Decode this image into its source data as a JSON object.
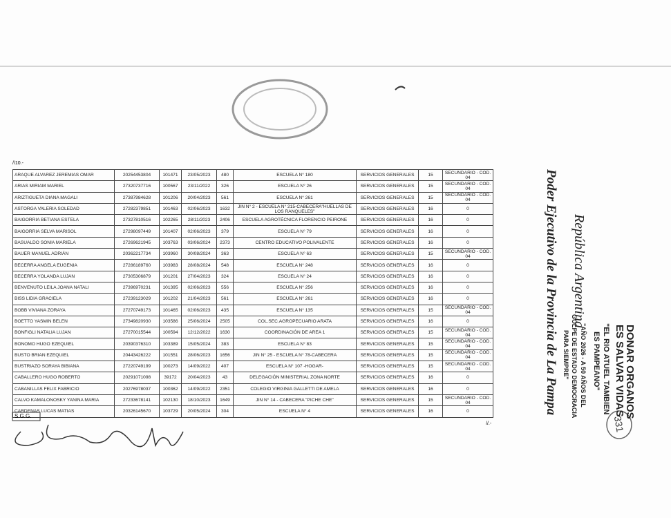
{
  "header": {
    "page_ref": "//10.-"
  },
  "table": {
    "rows": [
      [
        "ARAQUE ALVAREZ JEREMIAS OMAR",
        "20254453804",
        "101471",
        "23/05/2023",
        "480",
        "ESCUELA N° 180",
        "SERVICIOS GENERALES",
        "15",
        "SECUNDARIO - COD. 04"
      ],
      [
        "ARIAS MIRIAM MARIEL",
        "27320737716",
        "100567",
        "23/11/2022",
        "326",
        "ESCUELA N° 26",
        "SERVICIOS GENERALES",
        "15",
        "SECUNDARIO - COD. 04"
      ],
      [
        "ARIZTIGUETA DIANA MAGALI",
        "27387984628",
        "101206",
        "20/04/2023",
        "561",
        "ESCUELA N° 261",
        "SERVICIOS GENERALES",
        "15",
        "SECUNDARIO - COD. 04"
      ],
      [
        "ASTORGA VALERIA SOLEDAD",
        "27282379851",
        "101463",
        "02/06/2023",
        "1632",
        "JIN N° 2 - ESCUELA N° 215-CABECERA\"HUELLAS DE LOS RANQUELES\"",
        "SERVICIOS GENERALES",
        "16",
        "0"
      ],
      [
        "BAIGORRIA BETIANA ESTELA",
        "27327810516",
        "102265",
        "28/11/2023",
        "2406",
        "ESCUELA AGROTÉCNICA FLORENCIO PEIRONE",
        "SERVICIOS GENERALES",
        "16",
        "0"
      ],
      [
        "BAIGORRIA SELVA MARISOL",
        "27298097449",
        "101407",
        "02/06/2023",
        "379",
        "ESCUELA N° 79",
        "SERVICIOS GENERALES",
        "16",
        "0"
      ],
      [
        "BASUALDO SONIA MARIELA",
        "27269621945",
        "103763",
        "03/06/2024",
        "2373",
        "CENTRO EDUCATIVO POLIVALENTE",
        "SERVICIOS GENERALES",
        "16",
        "0"
      ],
      [
        "BAUER MANUEL ADRIÁN",
        "20362217734",
        "103960",
        "30/08/2024",
        "363",
        "ESCUELA N° 63",
        "SERVICIOS GENERALES",
        "15",
        "SECUNDARIO - COD. 04"
      ],
      [
        "BECERRA ANGELA EUGENIA",
        "27286189760",
        "103983",
        "28/08/2024",
        "548",
        "ESCUELA N° 248",
        "SERVICIOS GENERALES",
        "16",
        "0"
      ],
      [
        "BECERRA YOLANDA LUJAN",
        "27305306879",
        "101201",
        "27/04/2023",
        "324",
        "ESCUELA N° 24",
        "SERVICIOS GENERALES",
        "16",
        "0"
      ],
      [
        "BENVENUTO LEILA JOANA NATALI",
        "27396970231",
        "101395",
        "02/06/2023",
        "556",
        "ESCUELA N° 256",
        "SERVICIOS GENERALES",
        "16",
        "0"
      ],
      [
        "BISS LIDIA GRACIELA",
        "27239123029",
        "101202",
        "21/04/2023",
        "561",
        "ESCUELA N° 261",
        "SERVICIOS GENERALES",
        "16",
        "0"
      ],
      [
        "BOBB VIVIANA ZORAYA",
        "27270749173",
        "101465",
        "02/06/2023",
        "435",
        "ESCUELA N° 135",
        "SERVICIOS GENERALES",
        "15",
        "SECUNDARIO - COD. 04"
      ],
      [
        "BOETTO YASMIN BELEN",
        "27349820930",
        "103586",
        "25/06/2024",
        "2505",
        "COL.SEC.AGROPECUARIO ARATA",
        "SERVICIOS GENERALES",
        "16",
        "0"
      ],
      [
        "BONFIGLI NATALIA LUJAN",
        "27270015544",
        "100594",
        "12/12/2022",
        "1630",
        "COORDINACIÓN DE AREA 1",
        "SERVICIOS GENERALES",
        "15",
        "SECUNDARIO - COD. 04"
      ],
      [
        "BONOMO HUGO EZEQUIEL",
        "20390376310",
        "103389",
        "15/05/2024",
        "383",
        "ESCUELA N° 83",
        "SERVICIOS GENERALES",
        "15",
        "SECUNDARIO - COD. 04"
      ],
      [
        "BUSTO BRIAN EZEQUIEL",
        "20443426222",
        "101551",
        "28/06/2023",
        "1656",
        "JIN N° 25 - ESCUELA N° 78-CABECERA",
        "SERVICIOS GENERALES",
        "15",
        "SECUNDARIO - COD. 04"
      ],
      [
        "BUSTRIAZO SORAYA BIBIANA",
        "27220749199",
        "100273",
        "14/09/2022",
        "407",
        "ESCUELA N° 107 -HOGAR-",
        "SERVICIOS GENERALES",
        "15",
        "SECUNDARIO - COD. 04"
      ],
      [
        "CABALLERO HUGO ROBERTO",
        "20291071098",
        "39172",
        "20/04/2023",
        "43",
        "DELEGACIÓN MINISTERIAL ZONA NORTE",
        "SERVICIOS GENERALES",
        "16",
        "0"
      ],
      [
        "CABANILLAS FELIX FABRICIO",
        "20276978037",
        "100362",
        "14/09/2022",
        "2351",
        "COLEGIO VIRGINIA GALLETTI DE AMELA",
        "SERVICIOS GENERALES",
        "16",
        "0"
      ],
      [
        "CALVO KAMALONOSKY YANINA MARIA",
        "27233678141",
        "102130",
        "18/10/2023",
        "1649",
        "JIN N° 14 - CABECERA \"PICHE CHE\"",
        "SERVICIOS GENERALES",
        "15",
        "SECUNDARIO - COD. 04"
      ],
      [
        "CARDENAS LUCAS MATIAS",
        "20326145670",
        "103729",
        "20/05/2024",
        "304",
        "ESCUELA N° 4",
        "SERVICIOS GENERALES",
        "16",
        "0"
      ]
    ]
  },
  "side": {
    "institution": "Poder Ejecutivo de la Provincia de La Pampa",
    "country": "República Argentina",
    "stamp_lines": [
      "DONAR ORGANOS",
      "ES SALVAR VIDAS",
      "\"EL RIO ATUEL TAMBIEN",
      "ES PAMPEANO\"",
      "\"AÑO 2026 - A 50 AÑOS DEL",
      "GOLPE DE ESTADO DEMOCRACIA",
      "PARA SIEMPRE\""
    ],
    "folio": "331"
  },
  "footer": {
    "continues": "//.-",
    "office": "S.G.G."
  }
}
